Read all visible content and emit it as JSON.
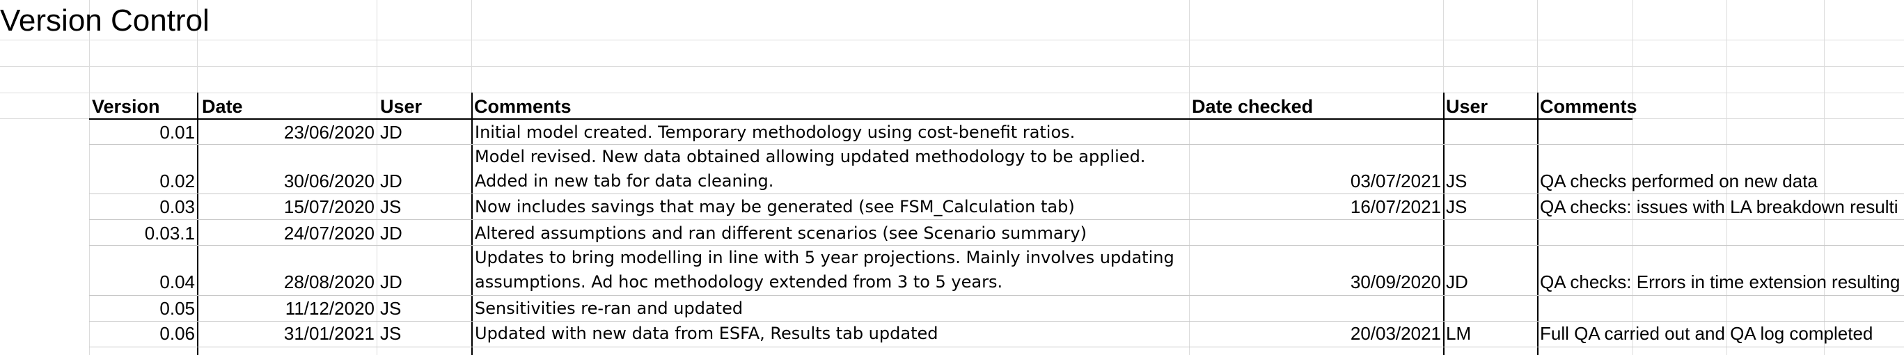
{
  "sheet": {
    "title": "Version Control",
    "headers": {
      "version": "Version",
      "date": "Date",
      "user": "User",
      "comments": "Comments",
      "date_checked": "Date checked",
      "checker": "User",
      "qa_comments": "Comments"
    },
    "rows": [
      {
        "version": "0.01",
        "date": "23/06/2020",
        "user": "JD",
        "comment_line1": "Initial model created. Temporary methodology using cost-benefit ratios.",
        "comment_line2": "",
        "date_checked": "",
        "checker": "",
        "qa_comment": ""
      },
      {
        "version": "0.02",
        "date": "30/06/2020",
        "user": "JD",
        "comment_line1": "Model revised. New data obtained allowing updated methodology to be applied.",
        "comment_line2": "Added in new tab for data cleaning.",
        "date_checked": "03/07/2021",
        "checker": "JS",
        "qa_comment": "QA checks performed on new data"
      },
      {
        "version": "0.03",
        "date": "15/07/2020",
        "user": "JS",
        "comment_line1": "Now includes savings that may be generated (see FSM_Calculation tab)",
        "comment_line2": "",
        "date_checked": "16/07/2021",
        "checker": "JS",
        "qa_comment": "QA checks: issues with LA breakdown resulti"
      },
      {
        "version": "0.03.1",
        "date": "24/07/2020",
        "user": "JD",
        "comment_line1": "Altered assumptions and ran different scenarios (see Scenario summary)",
        "comment_line2": "",
        "date_checked": "",
        "checker": "",
        "qa_comment": ""
      },
      {
        "version": "0.04",
        "date": "28/08/2020",
        "user": "JD",
        "comment_line1": "Updates to bring modelling in line with 5 year projections. Mainly involves updating",
        "comment_line2": "assumptions. Ad hoc methodology extended from 3 to 5 years.",
        "date_checked": "30/09/2020",
        "checker": "JD",
        "qa_comment": "QA checks: Errors in time extension resulting"
      },
      {
        "version": "0.05",
        "date": "11/12/2020",
        "user": "JS",
        "comment_line1": "Sensitivities re-ran and updated",
        "comment_line2": "",
        "date_checked": "",
        "checker": "",
        "qa_comment": ""
      },
      {
        "version": "0.06",
        "date": "31/01/2021",
        "user": "JS",
        "comment_line1": "Updated with new data from ESFA, Results tab updated",
        "comment_line2": "",
        "date_checked": "20/03/2021",
        "checker": "LM",
        "qa_comment": "Full QA carried out and QA log completed"
      }
    ]
  }
}
